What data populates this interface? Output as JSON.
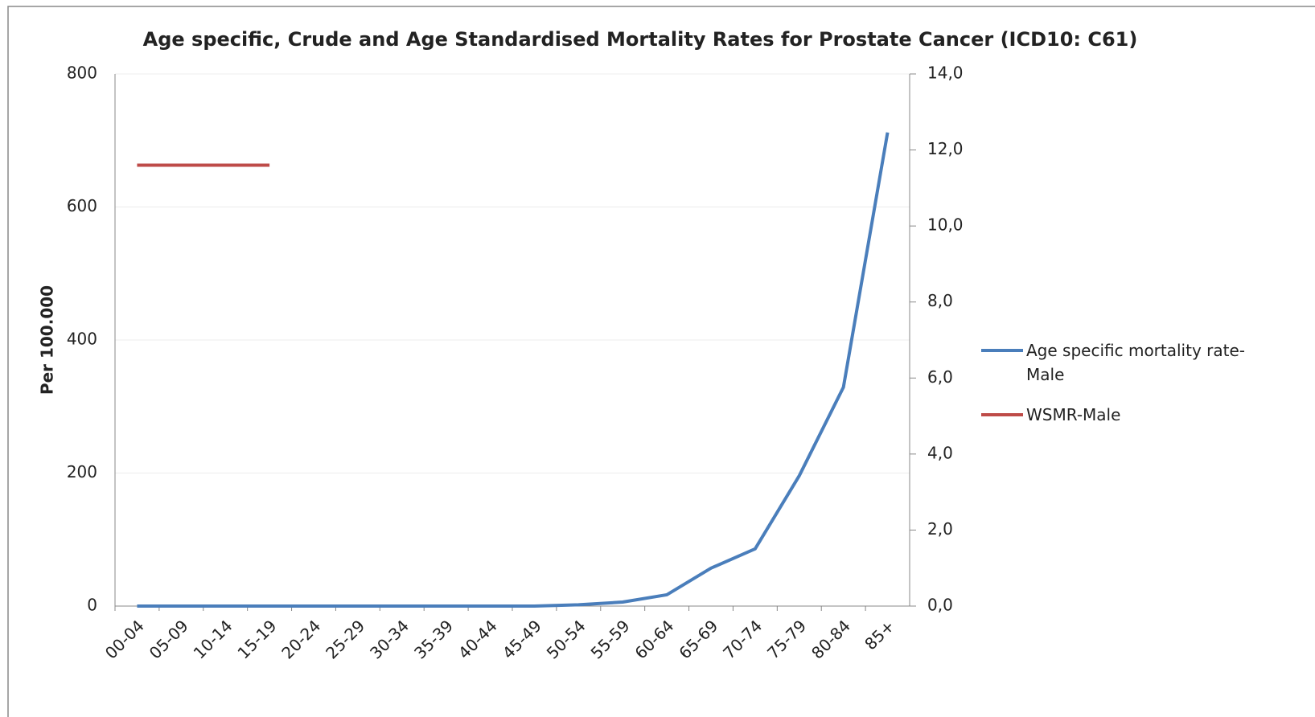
{
  "chart_data": {
    "type": "line",
    "title": "Age specific, Crude and Age Standardised Mortality Rates for Prostate Cancer  (ICD10: C61)",
    "y_label": "Per 100.000",
    "categories": [
      "00-04",
      "05-09",
      "10-14",
      "15-19",
      "20-24",
      "25-29",
      "30-34",
      "35-39",
      "40-44",
      "45-49",
      "50-54",
      "55-59",
      "60-64",
      "65-69",
      "70-74",
      "75-79",
      "80-84",
      "85+"
    ],
    "series": [
      {
        "name": "Age specific mortality rate-Male",
        "color": "#4a7ebb",
        "values": [
          0,
          0,
          0,
          0,
          0,
          0,
          0,
          0,
          0,
          0,
          2,
          6,
          17,
          57,
          86,
          196,
          329,
          712
        ]
      },
      {
        "name": "WSMR-Male",
        "color": "#be4b48",
        "axis": "y2",
        "values": [
          11.6,
          11.6,
          11.6,
          11.6,
          null,
          null,
          null,
          null,
          null,
          null,
          null,
          null,
          null,
          null,
          null,
          null,
          null,
          null
        ]
      }
    ],
    "ylim": [
      0,
      800
    ],
    "yticks": [
      0,
      200,
      400,
      600,
      800
    ],
    "y2lim": [
      0,
      14
    ],
    "y2ticks": [
      {
        "value": 0,
        "label": "0,0"
      },
      {
        "value": 2,
        "label": "2,0"
      },
      {
        "value": 4,
        "label": "4,0"
      },
      {
        "value": 6,
        "label": "6,0"
      },
      {
        "value": 8,
        "label": "8,0"
      },
      {
        "value": 10,
        "label": "10,0"
      },
      {
        "value": 12,
        "label": "12,0"
      },
      {
        "value": 14,
        "label": "14,0"
      }
    ],
    "grid": true,
    "legend": "right"
  }
}
